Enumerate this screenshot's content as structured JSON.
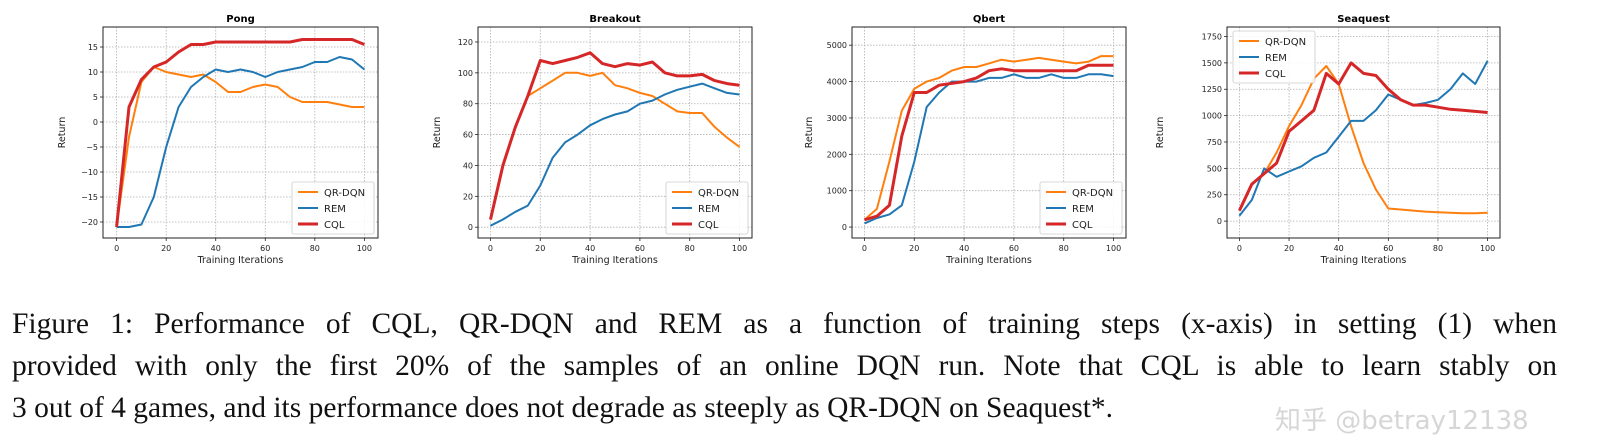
{
  "chart_data": [
    {
      "type": "line",
      "title": "Pong",
      "xlabel": "Training Iterations",
      "ylabel": "Return",
      "xlim": [
        -5.5,
        105.5
      ],
      "ylim": [
        -23.2,
        19
      ],
      "xticks": [
        0,
        20,
        40,
        60,
        80,
        100
      ],
      "yticks": [
        -20,
        -15,
        -10,
        -5,
        0,
        5,
        10,
        15
      ],
      "grid": true,
      "legend": "bottom-right",
      "x": [
        0,
        5,
        10,
        15,
        20,
        25,
        30,
        35,
        40,
        45,
        50,
        55,
        60,
        65,
        70,
        75,
        80,
        85,
        90,
        95,
        100
      ],
      "series": [
        {
          "name": "QR-DQN",
          "color": "#ff7f0e",
          "values": [
            -21,
            -3,
            8,
            11,
            10,
            9.5,
            9,
            9.5,
            8,
            6,
            6,
            7,
            7.5,
            7,
            5,
            4,
            4,
            4,
            3.5,
            3,
            3
          ]
        },
        {
          "name": "REM",
          "color": "#1f77b4",
          "values": [
            -21,
            -21,
            -20.5,
            -15,
            -5,
            3,
            7,
            9,
            10.5,
            10,
            10.5,
            10,
            9,
            10,
            10.5,
            11,
            12,
            12,
            13,
            12.5,
            10.5
          ]
        },
        {
          "name": "CQL",
          "color": "#d62728",
          "values": [
            -21,
            3,
            8.5,
            11,
            12,
            14,
            15.5,
            15.5,
            16,
            16,
            16,
            16,
            16,
            16,
            16,
            16.5,
            16.5,
            16.5,
            16.5,
            16.5,
            15.5
          ]
        }
      ]
    },
    {
      "type": "line",
      "title": "Breakout",
      "xlabel": "Training Iterations",
      "ylabel": "Return",
      "xlim": [
        -5,
        105
      ],
      "ylim": [
        -7,
        129.7
      ],
      "xticks": [
        0,
        20,
        40,
        60,
        80,
        100
      ],
      "yticks": [
        0,
        20,
        40,
        60,
        80,
        100,
        120
      ],
      "grid": true,
      "legend": "bottom-right",
      "x": [
        0,
        5,
        10,
        15,
        20,
        25,
        30,
        35,
        40,
        45,
        50,
        55,
        60,
        65,
        70,
        75,
        80,
        85,
        90,
        95,
        100
      ],
      "series": [
        {
          "name": "QR-DQN",
          "color": "#ff7f0e",
          "values": [
            5,
            40,
            65,
            85,
            90,
            95,
            100,
            100,
            98,
            100,
            92,
            90,
            87,
            85,
            80,
            75,
            74,
            74,
            65,
            58,
            52
          ]
        },
        {
          "name": "REM",
          "color": "#1f77b4",
          "values": [
            1,
            5,
            10,
            14,
            27,
            45,
            55,
            60,
            66,
            70,
            73,
            75,
            80,
            82,
            86,
            89,
            91,
            93,
            90,
            87,
            86
          ]
        },
        {
          "name": "CQL",
          "color": "#d62728",
          "values": [
            5,
            40,
            65,
            85,
            108,
            106,
            108,
            110,
            113,
            106,
            104,
            106,
            105,
            107,
            100,
            98,
            98,
            99,
            95,
            93,
            92
          ]
        }
      ]
    },
    {
      "type": "line",
      "title": "Qbert",
      "xlabel": "Training Iterations",
      "ylabel": "Return",
      "xlim": [
        -5,
        105
      ],
      "ylim": [
        -300,
        5500
      ],
      "xticks": [
        0,
        20,
        40,
        60,
        80,
        100
      ],
      "yticks": [
        0,
        1000,
        2000,
        3000,
        4000,
        5000
      ],
      "grid": true,
      "legend": "bottom-right",
      "x": [
        0,
        5,
        10,
        15,
        20,
        25,
        30,
        35,
        40,
        45,
        50,
        55,
        60,
        65,
        70,
        75,
        80,
        85,
        90,
        95,
        100
      ],
      "series": [
        {
          "name": "QR-DQN",
          "color": "#ff7f0e",
          "values": [
            200,
            500,
            1800,
            3200,
            3800,
            4000,
            4100,
            4300,
            4400,
            4400,
            4500,
            4600,
            4550,
            4600,
            4650,
            4600,
            4550,
            4500,
            4550,
            4700,
            4700
          ]
        },
        {
          "name": "REM",
          "color": "#1f77b4",
          "values": [
            100,
            250,
            350,
            600,
            1800,
            3300,
            3700,
            4000,
            4000,
            4000,
            4100,
            4100,
            4200,
            4100,
            4100,
            4200,
            4100,
            4100,
            4200,
            4200,
            4150
          ]
        },
        {
          "name": "CQL",
          "color": "#d62728",
          "values": [
            200,
            300,
            600,
            2500,
            3700,
            3700,
            3900,
            3950,
            4000,
            4100,
            4300,
            4350,
            4300,
            4300,
            4300,
            4300,
            4300,
            4300,
            4450,
            4450,
            4450
          ]
        }
      ]
    },
    {
      "type": "line",
      "title": "Seaquest",
      "xlabel": "Training Iterations",
      "ylabel": "Return",
      "xlim": [
        -5,
        105
      ],
      "ylim": [
        -160,
        1840
      ],
      "xticks": [
        0,
        20,
        40,
        60,
        80,
        100
      ],
      "yticks": [
        0,
        250,
        500,
        750,
        1000,
        1250,
        1500,
        1750
      ],
      "grid": true,
      "legend": "top-left",
      "x": [
        0,
        5,
        10,
        15,
        20,
        25,
        30,
        35,
        40,
        45,
        50,
        55,
        60,
        65,
        70,
        75,
        80,
        85,
        90,
        95,
        100
      ],
      "series": [
        {
          "name": "QR-DQN",
          "color": "#ff7f0e",
          "values": [
            100,
            350,
            450,
            650,
            900,
            1100,
            1350,
            1470,
            1300,
            900,
            550,
            300,
            120,
            110,
            100,
            90,
            85,
            80,
            75,
            75,
            80
          ]
        },
        {
          "name": "REM",
          "color": "#1f77b4",
          "values": [
            50,
            200,
            500,
            420,
            470,
            520,
            600,
            650,
            800,
            950,
            950,
            1050,
            1200,
            1150,
            1100,
            1120,
            1150,
            1250,
            1400,
            1300,
            1520
          ]
        },
        {
          "name": "CQL",
          "color": "#d62728",
          "values": [
            100,
            350,
            450,
            550,
            850,
            950,
            1050,
            1400,
            1300,
            1500,
            1400,
            1380,
            1250,
            1150,
            1100,
            1100,
            1080,
            1060,
            1050,
            1040,
            1030
          ]
        }
      ]
    }
  ],
  "caption": {
    "lines": [
      "Figure 1: Performance of CQL, QR-DQN and REM as a function of training steps (x-axis) in setting (1) when",
      "provided with only the first 20% of the samples of an online DQN run. Note that CQL is able to learn stably on",
      "3 out of 4 games, and its performance does not degrade as steeply as QR-DQN on Seaquest*."
    ]
  },
  "watermark": "知乎 @betray12138"
}
